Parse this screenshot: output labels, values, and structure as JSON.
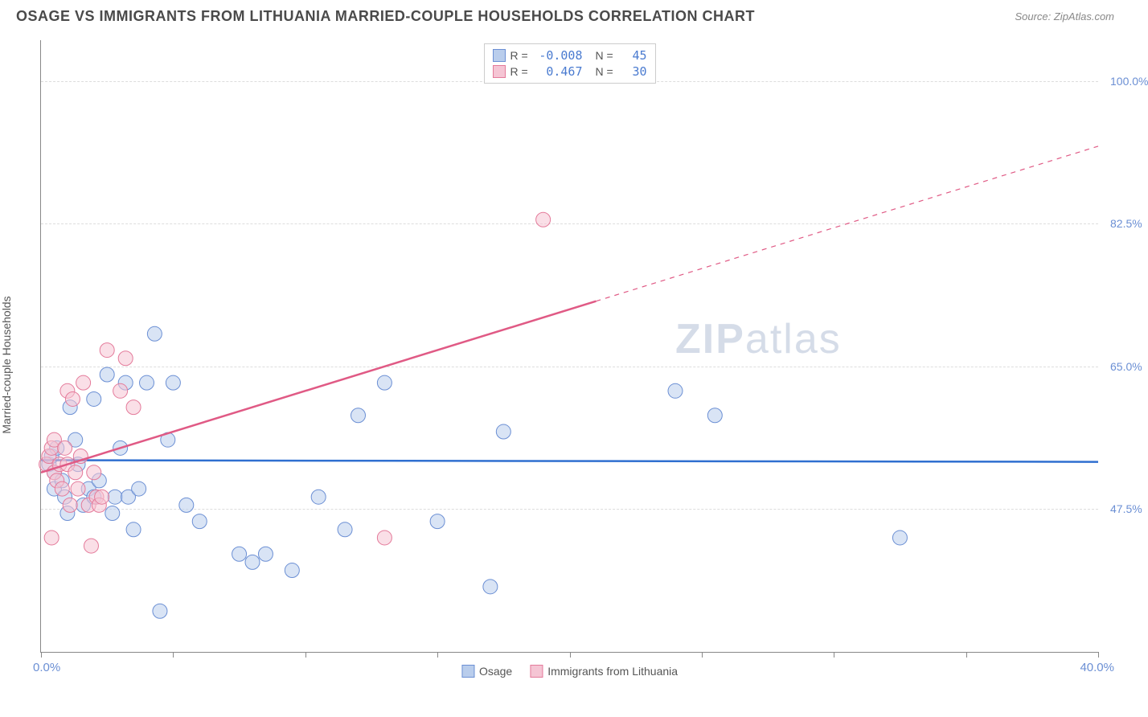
{
  "title": "OSAGE VS IMMIGRANTS FROM LITHUANIA MARRIED-COUPLE HOUSEHOLDS CORRELATION CHART",
  "source": "Source: ZipAtlas.com",
  "ylabel": "Married-couple Households",
  "watermark_bold": "ZIP",
  "watermark_rest": "atlas",
  "chart": {
    "type": "scatter",
    "xlim": [
      0,
      40
    ],
    "ylim": [
      30,
      105
    ],
    "x_min_label": "0.0%",
    "x_max_label": "40.0%",
    "x_ticks": [
      0,
      5,
      10,
      15,
      20,
      25,
      30,
      35,
      40
    ],
    "y_gridlines": [
      47.5,
      65.0,
      82.5,
      100.0
    ],
    "y_tick_labels": [
      "47.5%",
      "65.0%",
      "82.5%",
      "100.0%"
    ],
    "background_color": "#ffffff",
    "grid_color": "#dddddd",
    "axis_color": "#888888",
    "tick_label_color": "#6b8fd4",
    "text_color": "#555555"
  },
  "series": [
    {
      "name": "Osage",
      "swatch_fill": "#b9cdec",
      "swatch_stroke": "#6b8fd4",
      "marker_fill": "#b9cdec",
      "marker_stroke": "#6b8fd4",
      "marker_opacity": 0.55,
      "marker_radius": 9,
      "r_value": "-0.008",
      "n_value": "45",
      "trend": {
        "x1": 0,
        "y1": 53.5,
        "x2": 40,
        "y2": 53.3,
        "color": "#2f6fd0",
        "width": 2.5,
        "dash_from_x": null
      },
      "points": [
        [
          0.3,
          53
        ],
        [
          0.4,
          54
        ],
        [
          0.5,
          52
        ],
        [
          0.5,
          50
        ],
        [
          0.6,
          55
        ],
        [
          0.8,
          51
        ],
        [
          0.9,
          49
        ],
        [
          1.0,
          47
        ],
        [
          1.1,
          60
        ],
        [
          1.3,
          56
        ],
        [
          1.4,
          53
        ],
        [
          1.6,
          48
        ],
        [
          1.8,
          50
        ],
        [
          2.0,
          61
        ],
        [
          2.0,
          49
        ],
        [
          2.2,
          51
        ],
        [
          2.5,
          64
        ],
        [
          2.7,
          47
        ],
        [
          2.8,
          49
        ],
        [
          3.0,
          55
        ],
        [
          3.2,
          63
        ],
        [
          3.3,
          49
        ],
        [
          3.5,
          45
        ],
        [
          3.7,
          50
        ],
        [
          4.0,
          63
        ],
        [
          4.3,
          69
        ],
        [
          4.5,
          35
        ],
        [
          4.8,
          56
        ],
        [
          5.0,
          63
        ],
        [
          5.5,
          48
        ],
        [
          6.0,
          46
        ],
        [
          7.5,
          42
        ],
        [
          8.0,
          41
        ],
        [
          8.5,
          42
        ],
        [
          9.5,
          40
        ],
        [
          10.5,
          49
        ],
        [
          11.5,
          45
        ],
        [
          12.0,
          59
        ],
        [
          13.0,
          63
        ],
        [
          15.0,
          46
        ],
        [
          17.5,
          57
        ],
        [
          17.0,
          38
        ],
        [
          24.0,
          62
        ],
        [
          25.5,
          59
        ],
        [
          32.5,
          44
        ]
      ]
    },
    {
      "name": "Immigrants from Lithuania",
      "swatch_fill": "#f5c5d4",
      "swatch_stroke": "#e47a9a",
      "marker_fill": "#f5c5d4",
      "marker_stroke": "#e47a9a",
      "marker_opacity": 0.55,
      "marker_radius": 9,
      "r_value": "0.467",
      "n_value": "30",
      "trend": {
        "x1": 0,
        "y1": 52,
        "x2": 40,
        "y2": 92,
        "color": "#e05a85",
        "width": 2.5,
        "dash_from_x": 21
      },
      "points": [
        [
          0.2,
          53
        ],
        [
          0.3,
          54
        ],
        [
          0.4,
          55
        ],
        [
          0.5,
          52
        ],
        [
          0.5,
          56
        ],
        [
          0.6,
          51
        ],
        [
          0.7,
          53
        ],
        [
          0.8,
          50
        ],
        [
          0.9,
          55
        ],
        [
          1.0,
          62
        ],
        [
          1.0,
          53
        ],
        [
          1.1,
          48
        ],
        [
          1.2,
          61
        ],
        [
          1.3,
          52
        ],
        [
          1.4,
          50
        ],
        [
          1.5,
          54
        ],
        [
          1.6,
          63
        ],
        [
          1.8,
          48
        ],
        [
          1.9,
          43
        ],
        [
          2.0,
          52
        ],
        [
          2.1,
          49
        ],
        [
          2.2,
          48
        ],
        [
          2.3,
          49
        ],
        [
          2.5,
          67
        ],
        [
          3.0,
          62
        ],
        [
          3.2,
          66
        ],
        [
          3.5,
          60
        ],
        [
          13.0,
          44
        ],
        [
          19.0,
          83
        ],
        [
          0.4,
          44
        ]
      ]
    }
  ],
  "legend_bottom": [
    {
      "label": "Osage",
      "fill": "#b9cdec",
      "stroke": "#6b8fd4"
    },
    {
      "label": "Immigrants from Lithuania",
      "fill": "#f5c5d4",
      "stroke": "#e47a9a"
    }
  ],
  "legend_top_labels": {
    "r": "R =",
    "n": "N ="
  }
}
